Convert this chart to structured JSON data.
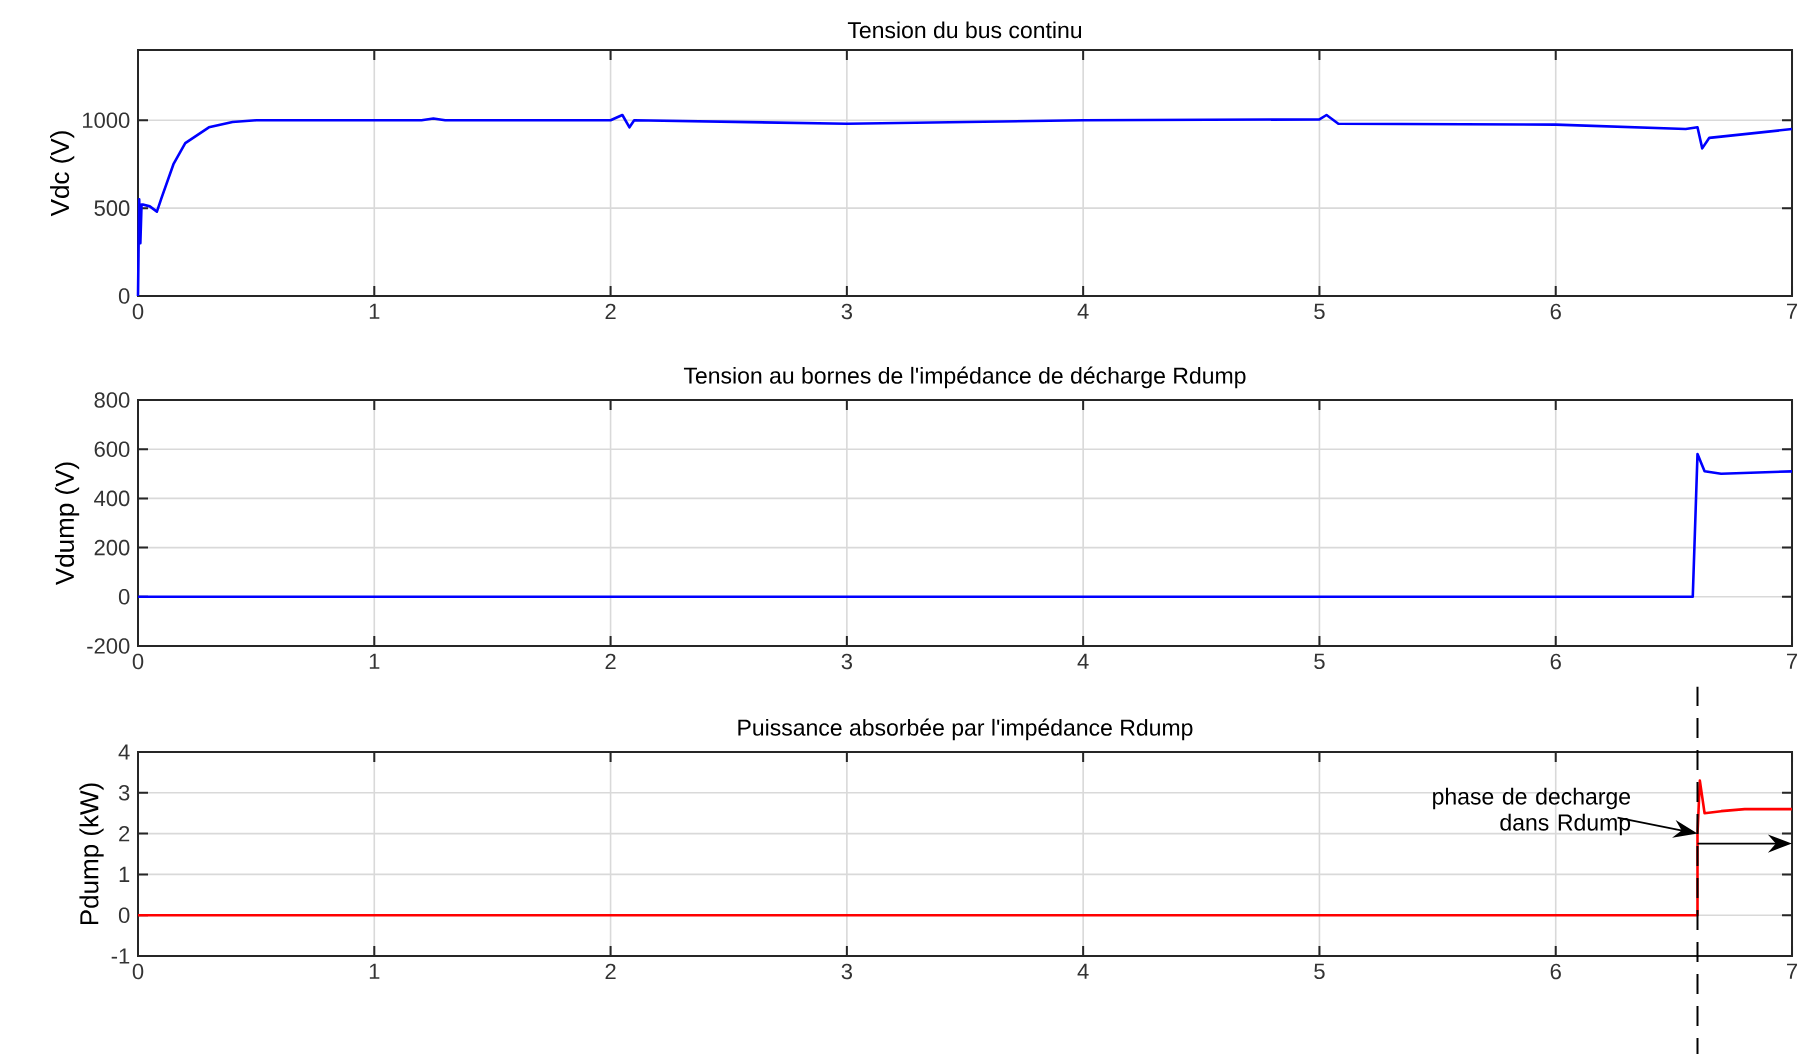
{
  "chart_data": [
    {
      "type": "line",
      "title": "Tension du bus continu",
      "ylabel": "Vdc (V)",
      "color": "#0000ff",
      "x": [
        0,
        0.005,
        0.01,
        0.015,
        0.02,
        0.05,
        0.08,
        0.1,
        0.15,
        0.2,
        0.3,
        0.4,
        0.5,
        1.2,
        1.25,
        1.3,
        2.0,
        2.05,
        2.08,
        2.1,
        3,
        4,
        5,
        5.03,
        5.08,
        6,
        6.55,
        6.6,
        6.62,
        6.65,
        7
      ],
      "values": [
        0,
        550,
        300,
        520,
        520,
        510,
        480,
        560,
        750,
        870,
        960,
        990,
        1000,
        1000,
        1010,
        1000,
        1000,
        1030,
        960,
        1000,
        980,
        1000,
        1005,
        1030,
        980,
        975,
        950,
        960,
        840,
        900,
        950
      ],
      "xlim": [
        0,
        7
      ],
      "ylim": [
        0,
        1400
      ],
      "xticks": [
        0,
        1,
        2,
        3,
        4,
        5,
        6,
        7
      ],
      "yticks": [
        0,
        500,
        1000
      ],
      "grid": true
    },
    {
      "type": "line",
      "title": "Tension au bornes de l'impédance de décharge Rdump",
      "ylabel": "Vdump (V)",
      "color": "#0000ff",
      "x": [
        0,
        6.58,
        6.6,
        6.63,
        6.7,
        7
      ],
      "values": [
        0,
        0,
        580,
        510,
        500,
        510
      ],
      "xlim": [
        0,
        7
      ],
      "ylim": [
        -200,
        800
      ],
      "xticks": [
        0,
        1,
        2,
        3,
        4,
        5,
        6,
        7
      ],
      "yticks": [
        -200,
        0,
        200,
        400,
        600,
        800
      ],
      "grid": true
    },
    {
      "type": "line",
      "title": "Puissance absorbée par l'impédance Rdump",
      "ylabel": "Pdump (kW)",
      "color": "#ff0000",
      "x": [
        0,
        6.6,
        6.6,
        6.61,
        6.63,
        6.7,
        6.8,
        7
      ],
      "values": [
        0,
        0,
        2,
        3.3,
        2.5,
        2.55,
        2.6,
        2.6
      ],
      "xlim": [
        0,
        7
      ],
      "ylim": [
        -1,
        4
      ],
      "xticks": [
        0,
        1,
        2,
        3,
        4,
        5,
        6,
        7
      ],
      "yticks": [
        -1,
        0,
        1,
        2,
        3,
        4
      ],
      "grid": true,
      "ref_lines": [
        {
          "axis": "x",
          "value": 6.6,
          "color": "#000000",
          "line_style": "dashed"
        }
      ],
      "annotations": [
        {
          "text": "phase de decharge dans Rdump",
          "x": 6.6,
          "y": 2
        }
      ]
    }
  ]
}
